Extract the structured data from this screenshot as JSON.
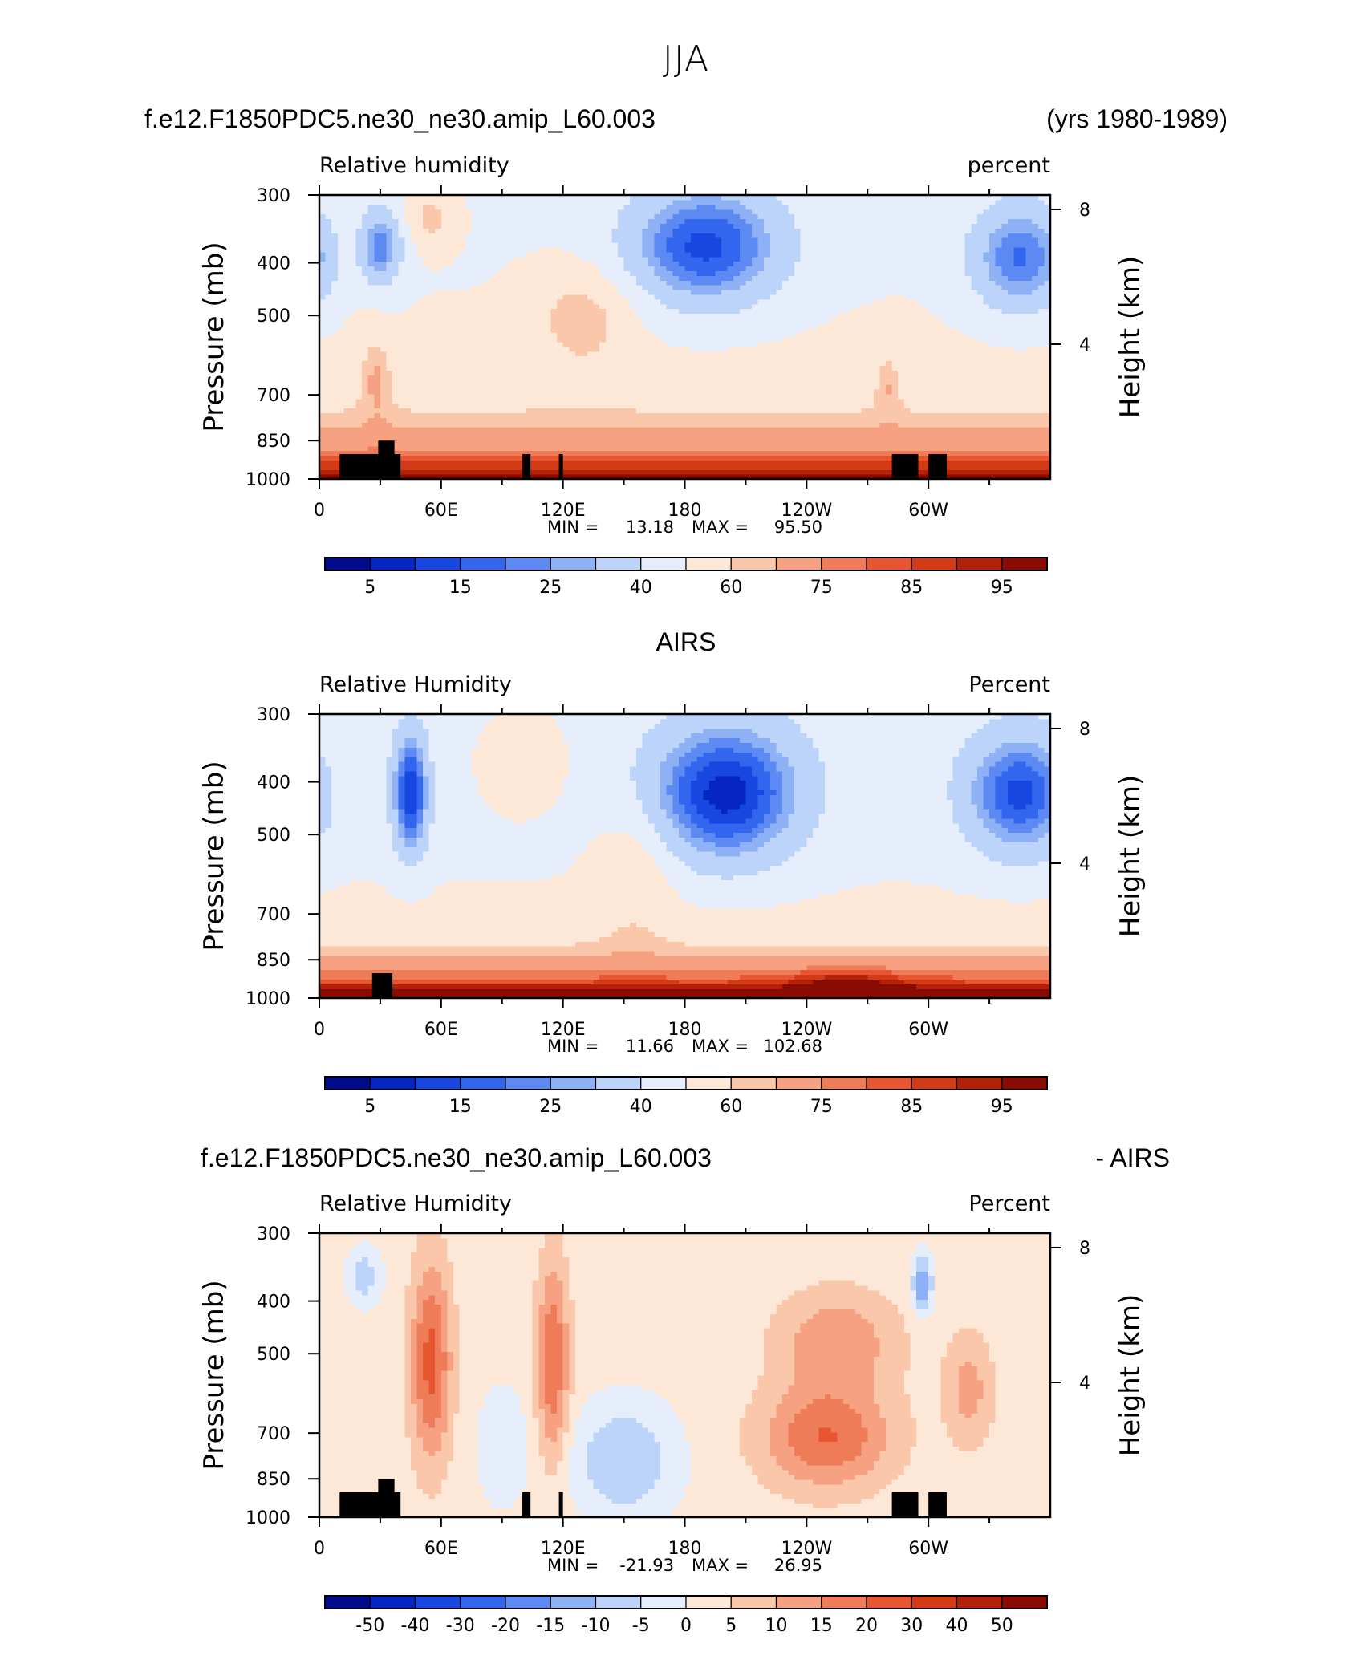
{
  "page_title": "JJA",
  "panel_headers": {
    "p1_left": "f.e12.F1850PDC5.ne30_ne30.amip_L60.003",
    "p1_right": "(yrs 1980-1989)",
    "p2_center": "AIRS",
    "p3_left": "f.e12.F1850PDC5.ne30_ne30.amip_L60.003",
    "p3_right": "- AIRS"
  },
  "colors": {
    "abs_scale": [
      "#000c8c",
      "#0425c2",
      "#1746e0",
      "#3366ee",
      "#5d8af2",
      "#8eb0f5",
      "#bcd4fa",
      "#e6eefb",
      "#fde7d7",
      "#fbc7ab",
      "#f6a181",
      "#ef7c59",
      "#e75630",
      "#d33a16",
      "#b22208",
      "#8a0b02"
    ],
    "diff_scale": [
      "#000c8c",
      "#0425c2",
      "#1746e0",
      "#3366ee",
      "#5d8af2",
      "#8eb0f5",
      "#bcd4fa",
      "#e6eefb",
      "#fde7d7",
      "#fbc7ab",
      "#f6a181",
      "#ef7c59",
      "#e75630",
      "#d33a16",
      "#b22208",
      "#8a0b02"
    ],
    "topography": "#000000"
  },
  "axes": {
    "ylabel_left": "Pressure (mb)",
    "ylabel_right": "Height (km)",
    "pressure_ticks": [
      "300",
      "400",
      "500",
      "700",
      "850",
      "1000"
    ],
    "height_ticks": [
      "8",
      "4"
    ],
    "lon_ticks": [
      "0",
      "60E",
      "120E",
      "180",
      "120W",
      "60W"
    ]
  },
  "chart_data": [
    {
      "type": "heatmap",
      "title": "Relative humidity",
      "units": "percent",
      "min_label": "MIN =",
      "min": "13.18",
      "max_label": "MAX =",
      "max": "95.50",
      "colorbar_labels": [
        "5",
        "15",
        "25",
        "40",
        "60",
        "75",
        "85",
        "95"
      ],
      "pressure_range": [
        1000,
        300
      ],
      "longitude_range": [
        0,
        360
      ],
      "topography_blocks": [
        [
          10,
          40,
          1000,
          900
        ],
        [
          29,
          37,
          900,
          850
        ],
        [
          100,
          104,
          1000,
          900
        ],
        [
          118,
          120,
          1000,
          900
        ],
        [
          282,
          295,
          1000,
          900
        ],
        [
          300,
          309,
          1000,
          900
        ]
      ]
    },
    {
      "type": "heatmap",
      "title": "Relative Humidity",
      "units": "Percent",
      "min_label": "MIN =",
      "min": "11.66",
      "max_label": "MAX =",
      "max": "102.68",
      "colorbar_labels": [
        "5",
        "15",
        "25",
        "40",
        "60",
        "75",
        "85",
        "95"
      ],
      "pressure_range": [
        1000,
        300
      ],
      "longitude_range": [
        0,
        360
      ],
      "topography_blocks": [
        [
          26,
          36,
          1000,
          900
        ]
      ]
    },
    {
      "type": "heatmap",
      "title": "Relative Humidity",
      "units": "Percent",
      "min_label": "MIN =",
      "min": "-21.93",
      "max_label": "MAX =",
      "max": "26.95",
      "colorbar_labels": [
        "-50",
        "-40",
        "-30",
        "-20",
        "-15",
        "-10",
        "-5",
        "0",
        "5",
        "10",
        "15",
        "20",
        "30",
        "40",
        "50"
      ],
      "pressure_range": [
        1000,
        300
      ],
      "longitude_range": [
        0,
        360
      ],
      "topography_blocks": [
        [
          10,
          40,
          1000,
          900
        ],
        [
          29,
          37,
          900,
          850
        ],
        [
          100,
          104,
          1000,
          900
        ],
        [
          118,
          120,
          1000,
          900
        ],
        [
          282,
          295,
          1000,
          900
        ],
        [
          300,
          309,
          1000,
          900
        ]
      ]
    }
  ]
}
